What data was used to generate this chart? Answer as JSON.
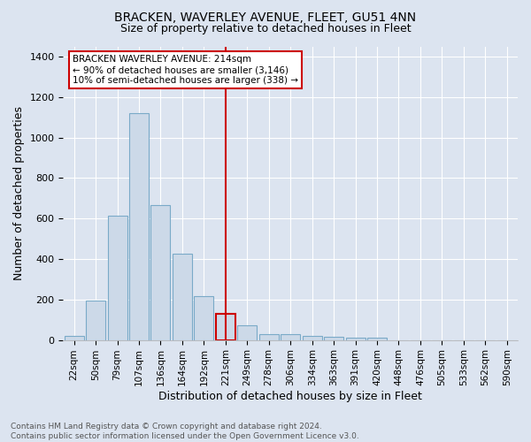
{
  "title": "BRACKEN, WAVERLEY AVENUE, FLEET, GU51 4NN",
  "subtitle": "Size of property relative to detached houses in Fleet",
  "xlabel": "Distribution of detached houses by size in Fleet",
  "ylabel": "Number of detached properties",
  "categories": [
    "22sqm",
    "50sqm",
    "79sqm",
    "107sqm",
    "136sqm",
    "164sqm",
    "192sqm",
    "221sqm",
    "249sqm",
    "278sqm",
    "306sqm",
    "334sqm",
    "363sqm",
    "391sqm",
    "420sqm",
    "448sqm",
    "476sqm",
    "505sqm",
    "533sqm",
    "562sqm",
    "590sqm"
  ],
  "values": [
    18,
    193,
    612,
    1120,
    668,
    425,
    218,
    128,
    72,
    30,
    27,
    22,
    15,
    12,
    10,
    0,
    0,
    0,
    0,
    0,
    0
  ],
  "bar_color": "#ccd9e8",
  "bar_edge_color": "#7aaac8",
  "highlight_bar_edge_color": "#cc0000",
  "vline_x": 7,
  "vline_color": "#cc0000",
  "annotation_text": "BRACKEN WAVERLEY AVENUE: 214sqm\n← 90% of detached houses are smaller (3,146)\n10% of semi-detached houses are larger (338) →",
  "annotation_box_color": "#ffffff",
  "annotation_box_edge_color": "#cc0000",
  "footer_text": "Contains HM Land Registry data © Crown copyright and database right 2024.\nContains public sector information licensed under the Open Government Licence v3.0.",
  "ylim": [
    0,
    1450
  ],
  "background_color": "#dce4f0",
  "plot_background_color": "#dce4f0",
  "title_fontsize": 10,
  "subtitle_fontsize": 9,
  "ylabel_fontsize": 9,
  "xlabel_fontsize": 9,
  "tick_fontsize": 8,
  "xtick_fontsize": 7.5,
  "annotation_fontsize": 7.5,
  "footer_fontsize": 6.5,
  "figsize": [
    6.0,
    5.0
  ],
  "dpi": 100
}
